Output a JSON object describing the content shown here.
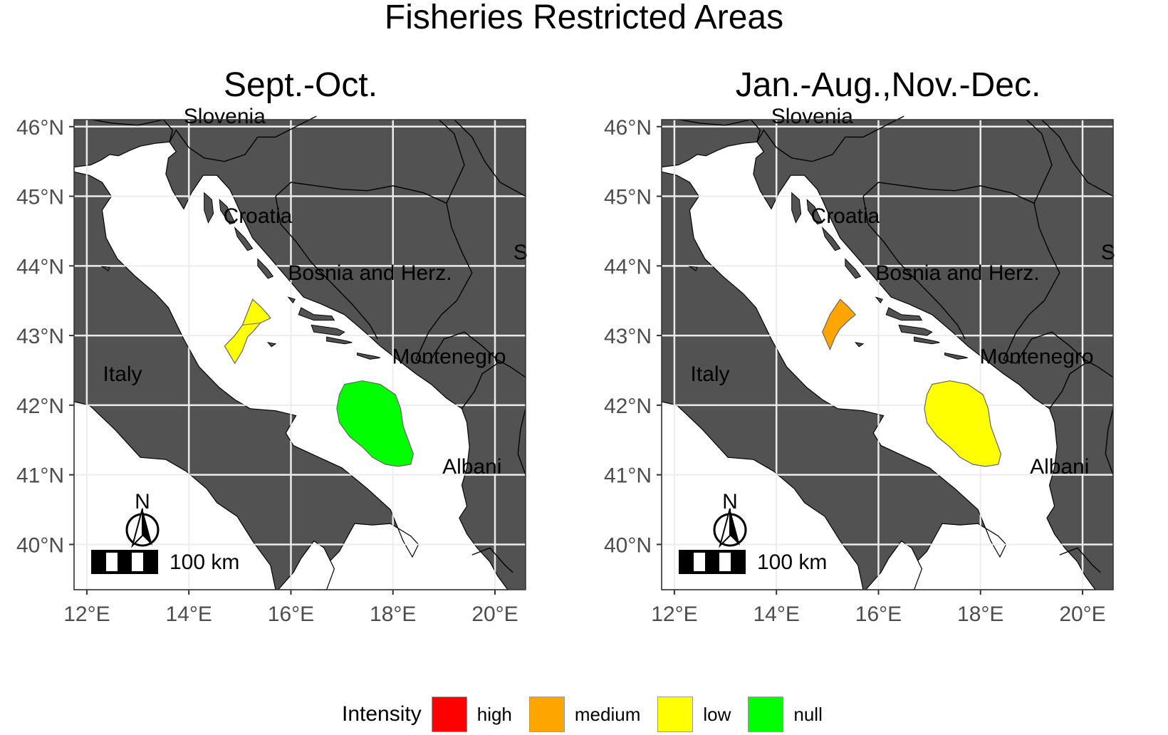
{
  "title": "Fisheries Restricted Areas",
  "axes": {
    "x_ticks": [
      "12°E",
      "14°E",
      "16°E",
      "18°E",
      "20°E"
    ],
    "y_ticks": [
      "46°N",
      "45°N",
      "44°N",
      "43°N",
      "42°N",
      "41°N",
      "40°N"
    ],
    "lon_range": [
      11.75,
      20.6
    ],
    "lat_range": [
      39.35,
      46.1
    ],
    "grid": true
  },
  "country_labels": [
    {
      "name": "Slovenia",
      "lon": 14.7,
      "lat": 46.15
    },
    {
      "name": "Croatia",
      "lon": 15.35,
      "lat": 44.72
    },
    {
      "name": "Bosnia and Herz.",
      "lon": 17.55,
      "lat": 43.9
    },
    {
      "name": "S",
      "lon": 20.5,
      "lat": 44.2
    },
    {
      "name": "Montenegro",
      "lon": 19.1,
      "lat": 42.7
    },
    {
      "name": "Italy",
      "lon": 12.7,
      "lat": 42.45
    },
    {
      "name": "Albani",
      "lon": 19.55,
      "lat": 41.12
    }
  ],
  "scale_bar": {
    "label": "100 km"
  },
  "north_arrow": {
    "label": "N"
  },
  "legend": {
    "title": "Intensity",
    "items": [
      {
        "label": "high",
        "color": "#ff0000"
      },
      {
        "label": "medium",
        "color": "#ffa500"
      },
      {
        "label": "low",
        "color": "#ffff00"
      },
      {
        "label": "null",
        "color": "#00ff00"
      }
    ]
  },
  "panels": [
    {
      "title": "Sept.-Oct.",
      "north_area": "low",
      "south_area": "null"
    },
    {
      "title": "Jan.-Aug.,Nov.-Dec.",
      "north_area": "medium",
      "south_area": "low"
    }
  ],
  "colors": {
    "land": "#525252",
    "sea": "#ffffff",
    "border": "#000000"
  }
}
